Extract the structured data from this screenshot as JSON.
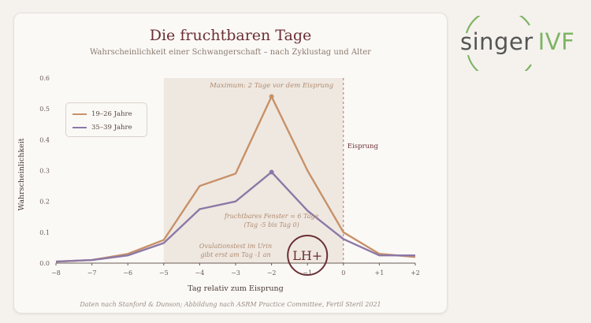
{
  "title": "Die fruchtbaren Tage",
  "subtitle": "Wahrscheinlichkeit einer Schwangerschaft – nach Zyklustag und Alter",
  "source": "Daten nach Stanford & Dunson; Abbildung nach ASRM Practice Committee, Fertil Steril 2021",
  "logo": {
    "part1": "singer",
    "part2": "IVF",
    "color_gray": "#555555",
    "color_green": "#7fb464"
  },
  "annotations": {
    "maximum": "Maximum: 2 Tage vor dem Eisprung",
    "eisprung": "Eisprung",
    "window_line1": "fruchtbares Fenster = 6 Tage",
    "window_line2": "(Tag -5 bis Tag 0)",
    "ovul_line1": "Ovulationstest im Urin",
    "ovul_line2": "gibt erst am Tag -1 an",
    "lh_badge": "LH+"
  },
  "chart_data": {
    "type": "line",
    "xlabel": "Tag relativ zum Eisprung",
    "ylabel": "Wahrscheinlichkeit",
    "x": [
      -8,
      -7,
      -6,
      -5,
      -4,
      -3,
      -2,
      -1,
      0,
      1,
      2
    ],
    "x_tick_labels": [
      "−8",
      "−7",
      "−6",
      "−5",
      "−4",
      "−3",
      "−2",
      "−1",
      "0",
      "+1",
      "+2"
    ],
    "y_ticks": [
      0.0,
      0.1,
      0.2,
      0.3,
      0.4,
      0.5,
      0.6
    ],
    "y_tick_labels": [
      "0.0",
      "0.1",
      "0.2",
      "0.3",
      "0.4",
      "0.5",
      "0.6"
    ],
    "xlim": [
      -8,
      2
    ],
    "ylim": [
      0,
      0.6
    ],
    "grid": false,
    "legend": "top-left",
    "shaded_window": [
      -5,
      0
    ],
    "ovulation_day": 0,
    "series": [
      {
        "name": "19–26 Jahre",
        "color": "#c79168",
        "values": [
          0.005,
          0.01,
          0.03,
          0.075,
          0.25,
          0.29,
          0.54,
          0.3,
          0.1,
          0.03,
          0.02
        ]
      },
      {
        "name": "35–39 Jahre",
        "color": "#8c78a6",
        "values": [
          0.005,
          0.01,
          0.025,
          0.065,
          0.175,
          0.2,
          0.295,
          0.17,
          0.078,
          0.025,
          0.025
        ]
      }
    ],
    "colors": {
      "shade": "#efe8e1",
      "eisprung": "#b07080",
      "axis": "#6a5a54",
      "annotation": "#b08a6e",
      "badge": "#6b2f34"
    }
  }
}
